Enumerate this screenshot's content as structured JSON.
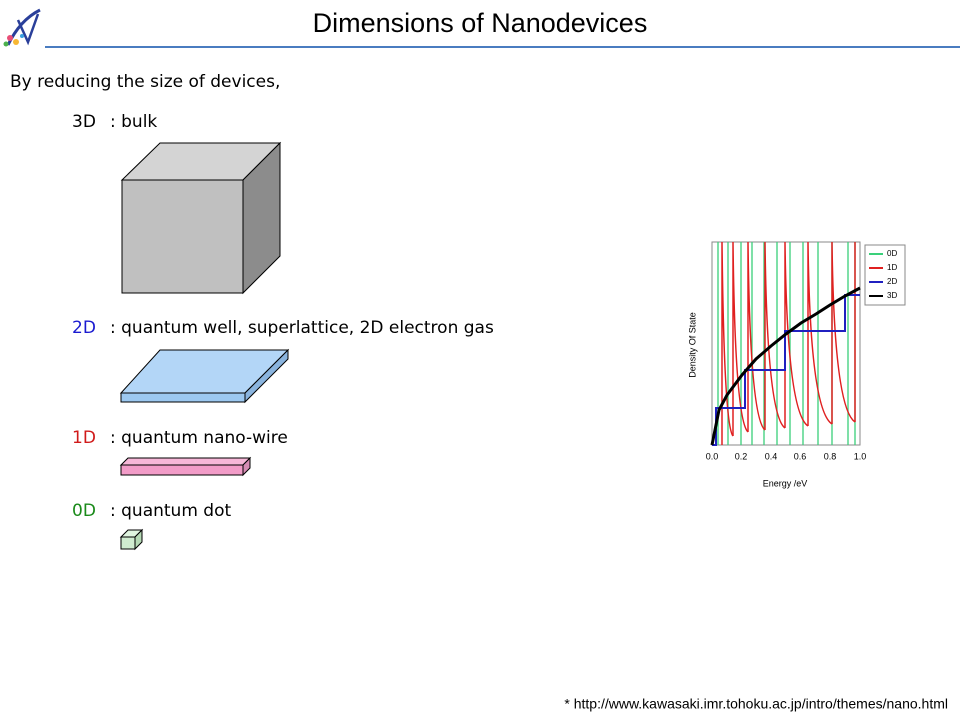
{
  "header": {
    "title": "Dimensions of Nanodevices"
  },
  "intro": "By reducing the size of devices,",
  "items": [
    {
      "label": "3D",
      "description": ": bulk"
    },
    {
      "label": "2D",
      "description": ": quantum well, superlattice, 2D electron gas"
    },
    {
      "label": "1D",
      "description": ": quantum nano-wire"
    },
    {
      "label": "0D",
      "description": ": quantum dot"
    }
  ],
  "figure": {
    "y_label": "Density Of State",
    "x_label": "Energy /eV",
    "xtick_labels": [
      "0.0",
      "0.2",
      "0.4",
      "0.6",
      "0.8",
      "1.0"
    ],
    "legend": [
      "0D",
      "1D",
      "2D",
      "3D"
    ]
  },
  "footer": "* http://www.kawasaki.imr.tohoku.ac.jp/intro/themes/nano.html"
}
